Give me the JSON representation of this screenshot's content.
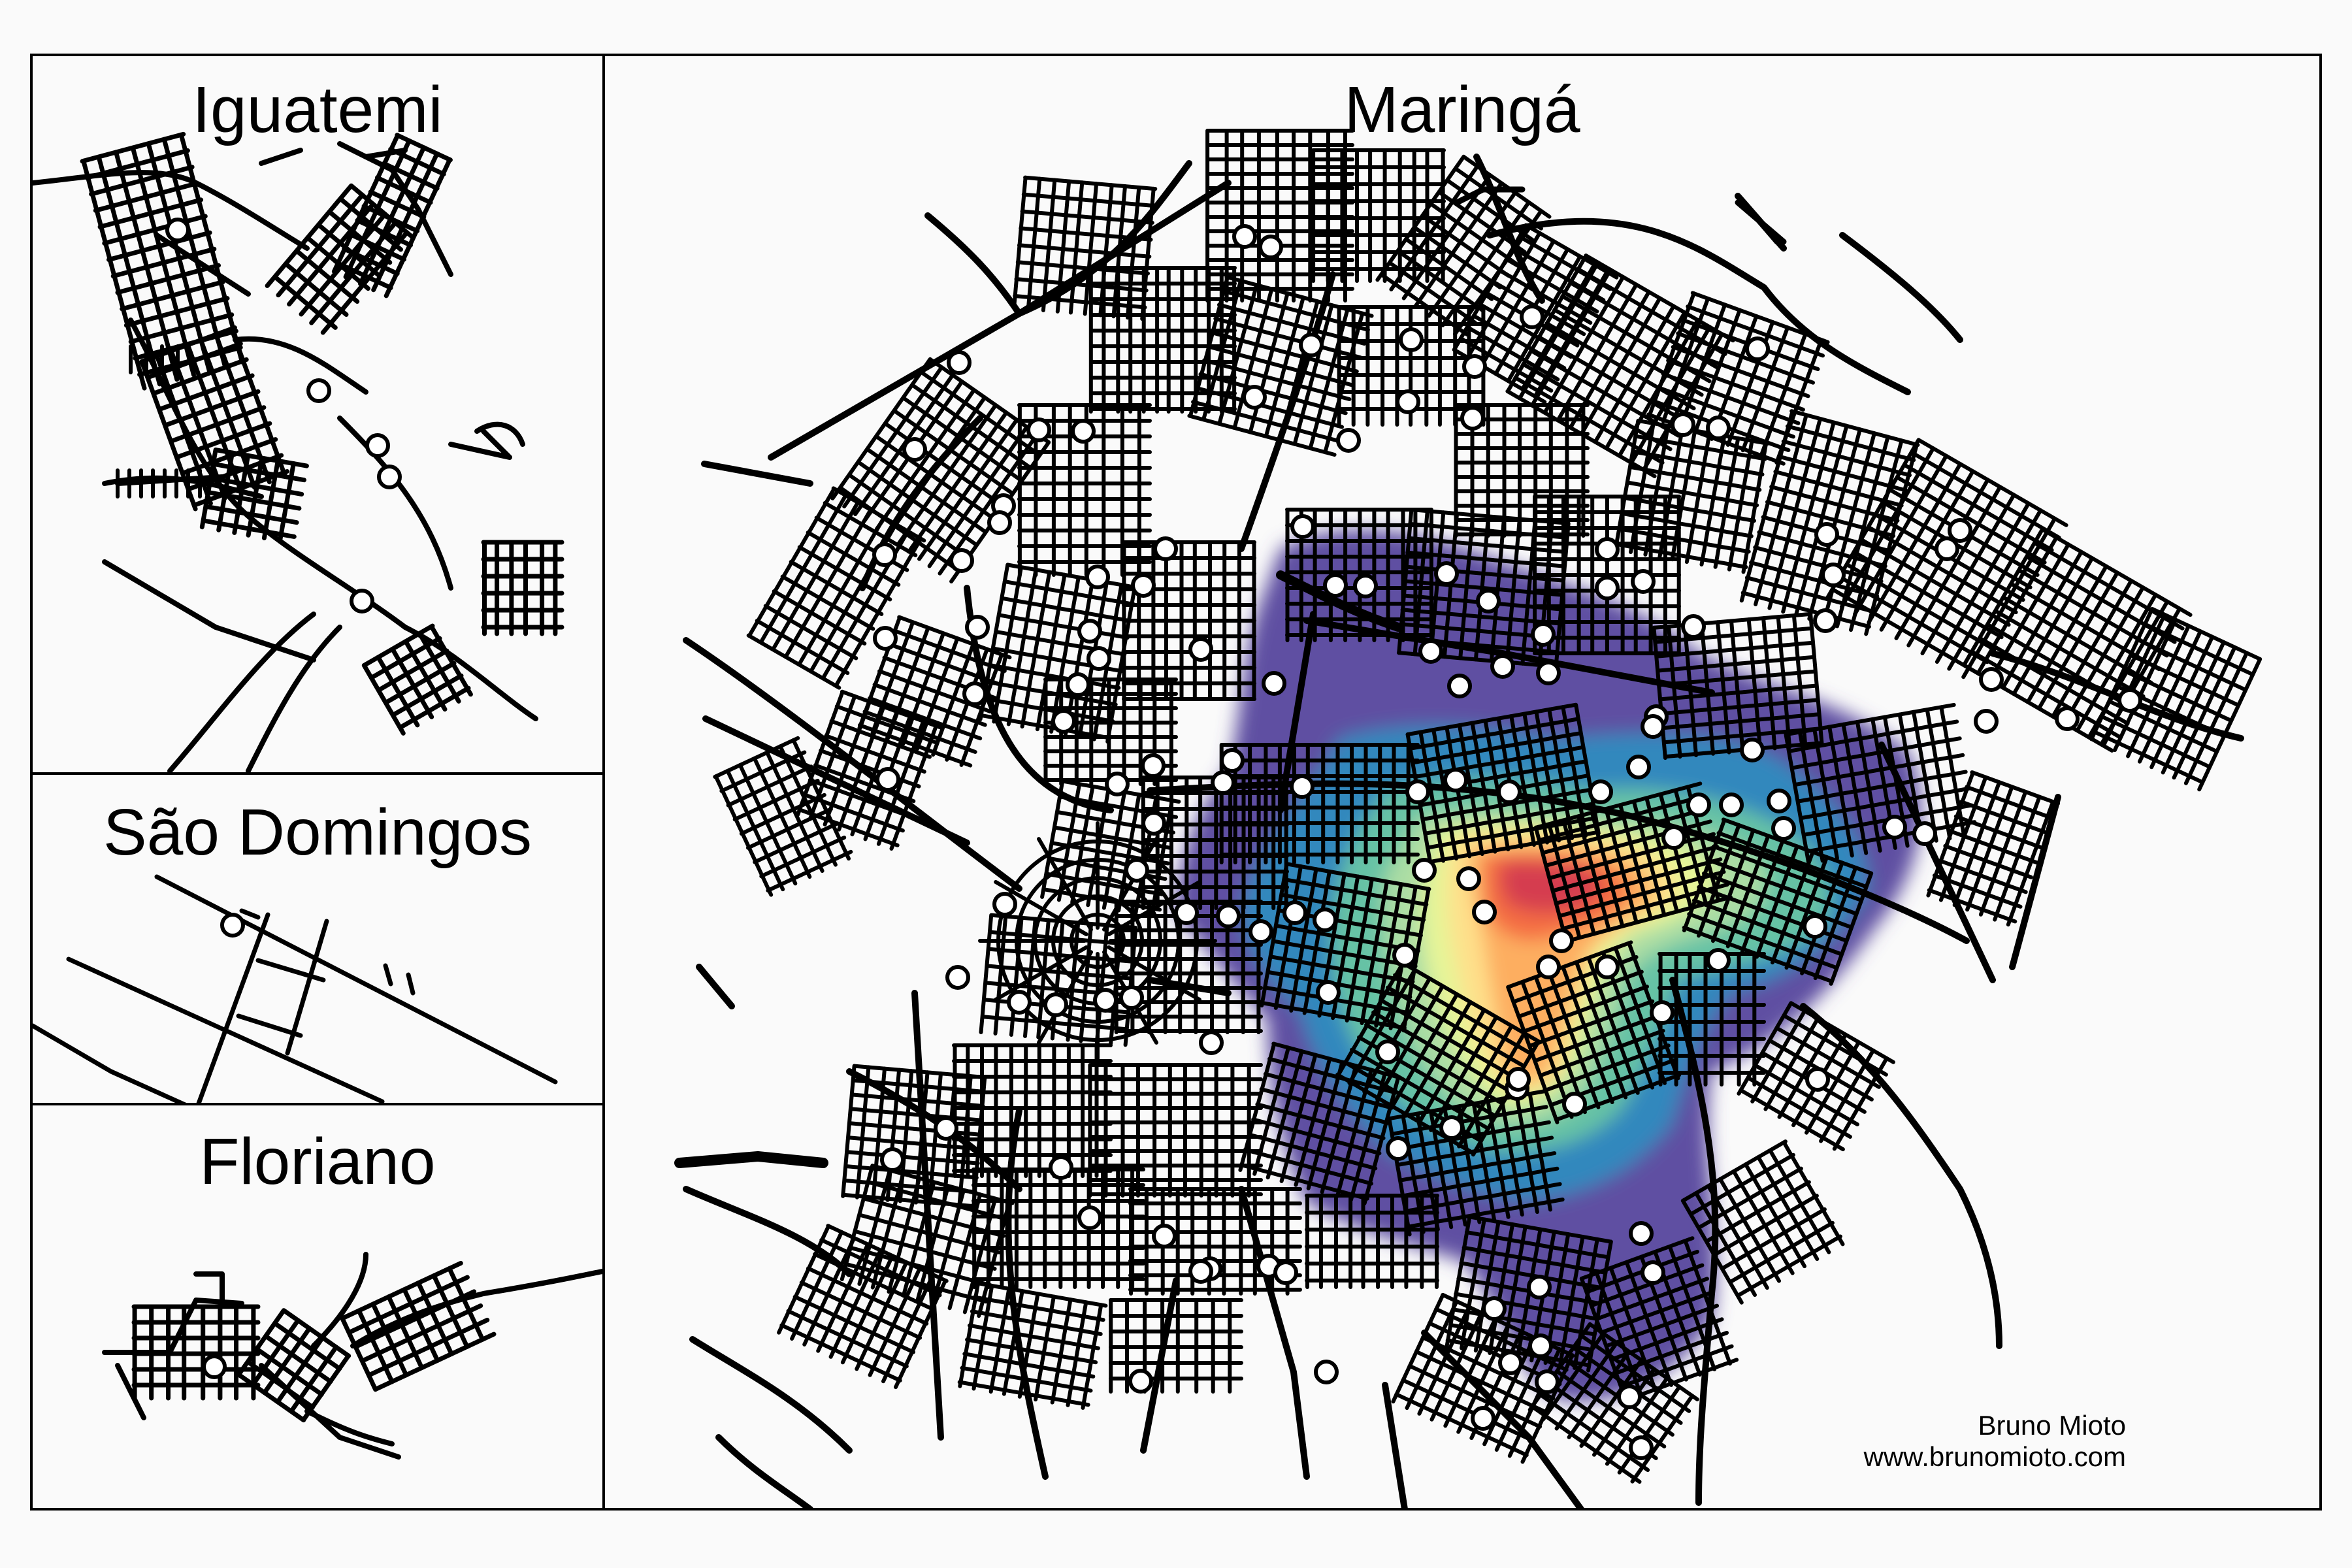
{
  "panels": {
    "main": {
      "title": "Maringá"
    },
    "iguatemi": {
      "title": "Iguatemi"
    },
    "sao_domingos": {
      "title": "São Domingos"
    },
    "floriano": {
      "title": "Floriano"
    }
  },
  "credit": {
    "author": "Bruno Mioto",
    "website": "www.brunomioto.com"
  },
  "colors": {
    "roads": "#000000",
    "frame_border": "#000000",
    "background": "#fafafa",
    "points_fill": "#ffffff",
    "density_scale": [
      "#5e4fa2",
      "#3288bd",
      "#66c2a5",
      "#abdda4",
      "#e6f598",
      "#fee08b",
      "#fdae61",
      "#f46d43",
      "#d53e4f"
    ]
  },
  "legend": "none"
}
